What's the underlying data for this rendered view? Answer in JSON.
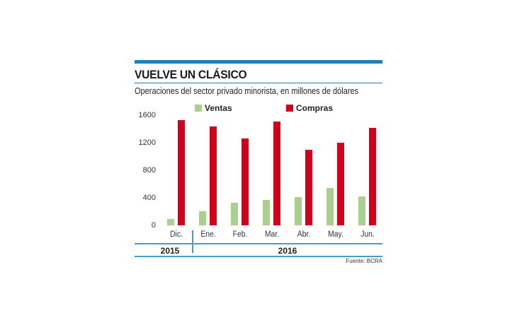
{
  "header": {
    "title": "VUELVE UN CLÁSICO",
    "subtitle": "Operaciones del sector privado minorista, en millones de dólares"
  },
  "legend": [
    {
      "label": "Ventas",
      "color": "#a9d08e"
    },
    {
      "label": "Compras",
      "color": "#d0021b"
    }
  ],
  "years": [
    {
      "label": "2015"
    },
    {
      "label": "2016"
    }
  ],
  "source": "Fuente: BCRA",
  "chart_data": {
    "type": "bar",
    "title": "VUELVE UN CLÁSICO",
    "subtitle": "Operaciones del sector privado minorista, en millones de dólares",
    "xlabel": "",
    "ylabel": "",
    "categories": [
      "Dic.",
      "Ene.",
      "Feb.",
      "Mar.",
      "Abr.",
      "May.",
      "Jun."
    ],
    "category_groups": [
      {
        "label": "2015",
        "categories": [
          "Dic."
        ]
      },
      {
        "label": "2016",
        "categories": [
          "Ene.",
          "Feb.",
          "Mar.",
          "Abr.",
          "May.",
          "Jun."
        ]
      }
    ],
    "series": [
      {
        "name": "Ventas",
        "color": "#a9d08e",
        "values": [
          90,
          205,
          325,
          370,
          410,
          545,
          420
        ]
      },
      {
        "name": "Compras",
        "color": "#d0021b",
        "values": [
          1530,
          1440,
          1265,
          1510,
          1100,
          1195,
          1420
        ]
      }
    ],
    "yticks": [
      0,
      400,
      800,
      1200,
      1600
    ],
    "ylim": [
      0,
      1600
    ],
    "grid": false,
    "legend_position": "top",
    "source": "Fuente: BCRA"
  }
}
